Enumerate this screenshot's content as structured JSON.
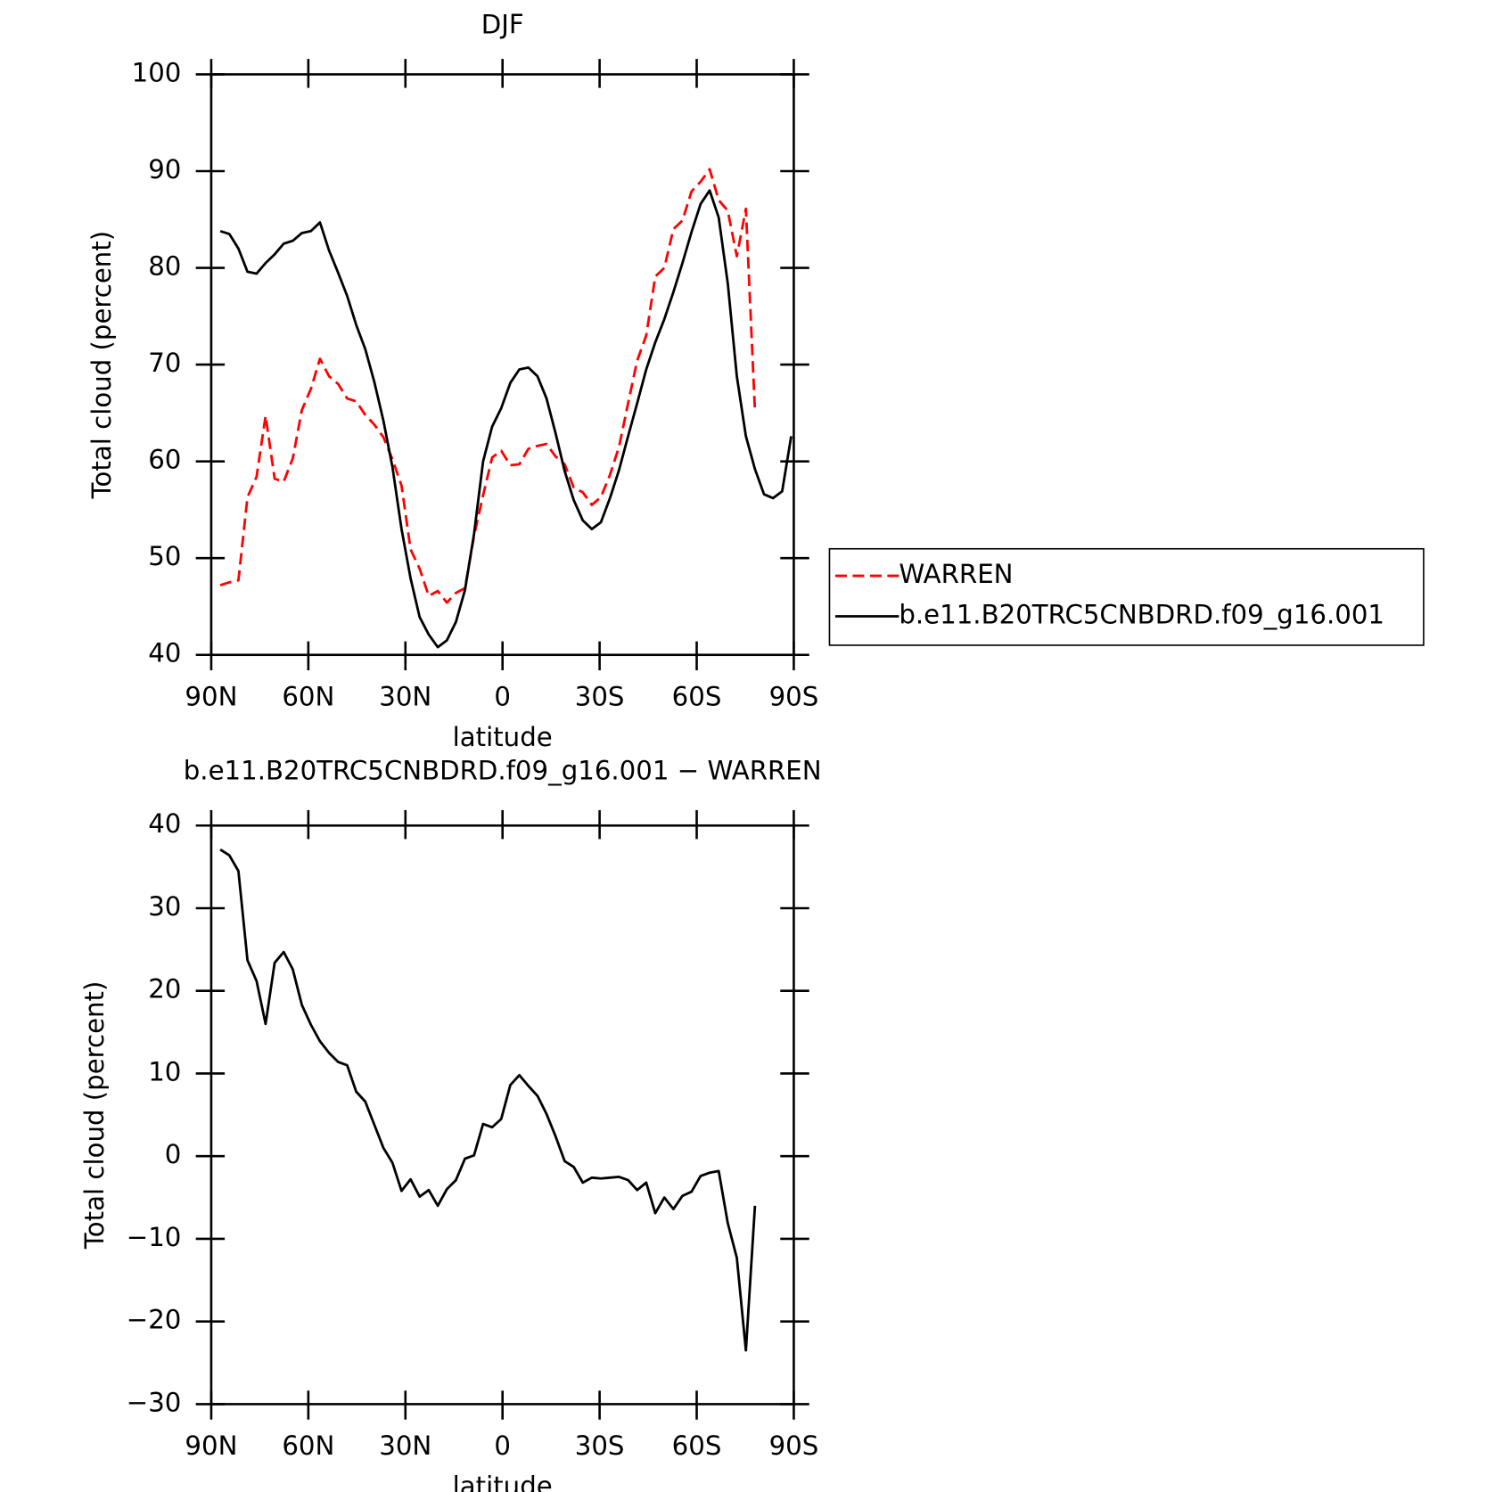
{
  "chart_data": [
    {
      "type": "line",
      "title": "DJF",
      "xlabel": "latitude",
      "ylabel": "Total cloud (percent)",
      "x": [
        87.2,
        84.4,
        81.6,
        78.8,
        76,
        73.2,
        70.4,
        67.6,
        64.8,
        62,
        59.2,
        56.4,
        53.6,
        50.8,
        48,
        45.2,
        42.4,
        39.6,
        36.8,
        34,
        31.2,
        28.4,
        25.6,
        22.8,
        20,
        17.2,
        14.4,
        11.6,
        8.8,
        6,
        3.2,
        0.4,
        -2.4,
        -5.2,
        -8,
        -10.8,
        -13.6,
        -16.4,
        -19.2,
        -22,
        -24.8,
        -27.6,
        -30.4,
        -33.2,
        -36,
        -38.8,
        -41.6,
        -44.4,
        -47.2,
        -50,
        -52.8,
        -55.6,
        -58.4,
        -61.2,
        -64,
        -66.8,
        -69.6,
        -72.4,
        -75.2,
        -78,
        -80.8,
        -83.6,
        -86.4,
        -89.2
      ],
      "series": [
        {
          "name": "WARREN",
          "color": "#ff0000",
          "line_style": "dashed",
          "values": [
            47.2,
            47.5,
            47.7,
            56.3,
            58.4,
            64.7,
            58.2,
            57.9,
            60.3,
            65.3,
            67.5,
            70.6,
            68.8,
            68.0,
            66.5,
            66.2,
            64.8,
            63.8,
            62.5,
            60.2,
            57.5,
            50.9,
            48.9,
            46.1,
            46.6,
            45.4,
            46.4,
            46.9,
            52.3,
            56.5,
            60.4,
            61.1,
            59.6,
            59.7,
            61.3,
            61.6,
            61.8,
            60.5,
            59.7,
            57.3,
            56.8,
            55.5,
            56.3,
            58.6,
            61.5,
            66.0,
            70.4,
            73.0,
            79.1,
            80.0,
            84.0,
            84.9,
            87.9,
            88.9,
            90.2,
            87.0,
            85.9,
            81.2,
            86.1,
            65.2,
            null,
            null,
            null,
            null
          ]
        },
        {
          "name": "b.e11.B20TRC5CNBDRD.f09_g16.001",
          "color": "#000000",
          "line_style": "solid",
          "values": [
            83.8,
            83.5,
            82.0,
            79.6,
            79.4,
            80.5,
            81.4,
            82.5,
            82.8,
            83.6,
            83.8,
            84.7,
            81.8,
            79.5,
            77.1,
            74.1,
            71.6,
            68.2,
            64.2,
            59.4,
            53.0,
            47.9,
            43.9,
            42.1,
            40.8,
            41.5,
            43.4,
            46.7,
            52.5,
            60.0,
            63.6,
            65.5,
            68.1,
            69.5,
            69.7,
            68.8,
            66.5,
            62.9,
            59.0,
            56.0,
            53.9,
            53.0,
            53.7,
            56.2,
            59.1,
            62.6,
            66.0,
            69.5,
            72.3,
            74.7,
            77.5,
            80.5,
            83.7,
            86.6,
            88.0,
            85.2,
            78.4,
            68.8,
            62.6,
            59.2,
            56.6,
            56.2,
            56.9,
            62.6
          ]
        }
      ],
      "xlim": [
        90,
        -90
      ],
      "xticks": [
        {
          "value": 90,
          "label": "90N"
        },
        {
          "value": 60,
          "label": "60N"
        },
        {
          "value": 30,
          "label": "30N"
        },
        0,
        {
          "value": -30,
          "label": "30S"
        },
        {
          "value": -60,
          "label": "60S"
        },
        {
          "value": -90,
          "label": "90S"
        }
      ],
      "ylim": [
        40,
        100
      ],
      "yticks": [
        40,
        50,
        60,
        70,
        80,
        90,
        100
      ],
      "legend": "right"
    },
    {
      "type": "line",
      "title": "b.e11.B20TRC5CNBDRD.f09_g16.001 − WARREN",
      "xlabel": "latitude",
      "ylabel": "Total cloud (percent)",
      "x": [
        87.2,
        84.4,
        81.6,
        78.8,
        76,
        73.2,
        70.4,
        67.6,
        64.8,
        62,
        59.2,
        56.4,
        53.6,
        50.8,
        48,
        45.2,
        42.4,
        39.6,
        36.8,
        34,
        31.2,
        28.4,
        25.6,
        22.8,
        20,
        17.2,
        14.4,
        11.6,
        8.8,
        6,
        3.2,
        0.4,
        -2.4,
        -5.2,
        -8,
        -10.8,
        -13.6,
        -16.4,
        -19.2,
        -22,
        -24.8,
        -27.6,
        -30.4,
        -33.2,
        -36,
        -38.8,
        -41.6,
        -44.4,
        -47.2,
        -50,
        -52.8,
        -55.6,
        -58.4,
        -61.2,
        -64,
        -66.8,
        -69.6,
        -72.4,
        -75.2,
        -78,
        -80.8,
        -83.6,
        -86.4,
        -89.2
      ],
      "series": [
        {
          "color": "#000000",
          "line_style": "solid",
          "values": [
            37.1,
            36.4,
            34.5,
            23.7,
            21.2,
            16.0,
            23.4,
            24.7,
            22.6,
            18.3,
            15.9,
            13.9,
            12.5,
            11.4,
            11.0,
            7.8,
            6.6,
            3.8,
            1.0,
            -0.8,
            -4.2,
            -2.8,
            -4.9,
            -4.1,
            -6.0,
            -4.0,
            -2.9,
            -0.3,
            0.1,
            3.9,
            3.5,
            4.5,
            8.6,
            9.8,
            8.5,
            7.3,
            5.1,
            2.4,
            -0.6,
            -1.3,
            -3.2,
            -2.6,
            -2.7,
            -2.6,
            -2.5,
            -2.9,
            -4.1,
            -3.2,
            -6.9,
            -5.0,
            -6.4,
            -4.8,
            -4.3,
            -2.4,
            -2.0,
            -1.8,
            -8.1,
            -12.3,
            -23.5,
            -6.0,
            null,
            null,
            null,
            null
          ]
        }
      ],
      "xlim": [
        90,
        -90
      ],
      "xticks": [
        {
          "value": 90,
          "label": "90N"
        },
        {
          "value": 60,
          "label": "60N"
        },
        {
          "value": 30,
          "label": "30N"
        },
        0,
        {
          "value": -30,
          "label": "30S"
        },
        {
          "value": -60,
          "label": "60S"
        },
        {
          "value": -90,
          "label": "90S"
        }
      ],
      "ylim": [
        -30,
        40
      ],
      "yticks": [
        {
          "value": -30,
          "label": "−30"
        },
        {
          "value": -20,
          "label": "−20"
        },
        {
          "value": -10,
          "label": "−10"
        },
        0,
        10,
        20,
        30,
        40
      ]
    }
  ]
}
